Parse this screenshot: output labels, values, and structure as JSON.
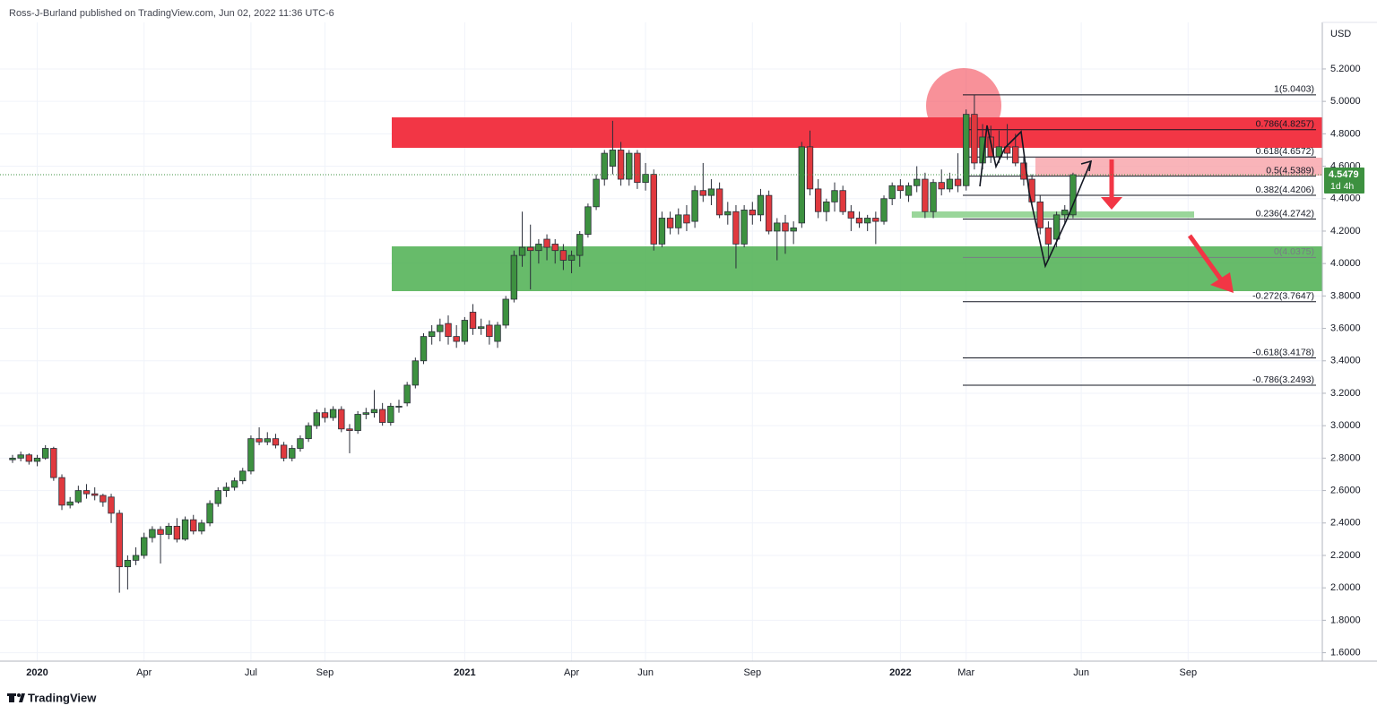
{
  "chart_data": {
    "type": "candlestick",
    "header": "Ross-J-Burland published on TradingView.com, Jun 02, 2022 11:36 UTC-6",
    "currency": "USD",
    "brand": "TradingView",
    "up_color": "#3d9140",
    "down_color": "#e0393e",
    "grid": true,
    "ylim": [
      1.548,
      5.487
    ],
    "yticks": [
      {
        "value": 1.6,
        "label": "1.6000"
      },
      {
        "value": 1.8,
        "label": "1.8000"
      },
      {
        "value": 2.0,
        "label": "2.0000"
      },
      {
        "value": 2.2,
        "label": "2.2000"
      },
      {
        "value": 2.4,
        "label": "2.4000"
      },
      {
        "value": 2.6,
        "label": "2.6000"
      },
      {
        "value": 2.8,
        "label": "2.8000"
      },
      {
        "value": 3.0,
        "label": "3.0000"
      },
      {
        "value": 3.2,
        "label": "3.2000"
      },
      {
        "value": 3.4,
        "label": "3.4000"
      },
      {
        "value": 3.6,
        "label": "3.6000"
      },
      {
        "value": 3.8,
        "label": "3.8000"
      },
      {
        "value": 4.0,
        "label": "4.0000"
      },
      {
        "value": 4.2,
        "label": "4.2000"
      },
      {
        "value": 4.4,
        "label": "4.4000"
      },
      {
        "value": 4.6,
        "label": "4.6000"
      },
      {
        "value": 4.8,
        "label": "4.8000"
      },
      {
        "value": 5.0,
        "label": "5.0000"
      },
      {
        "value": 5.2,
        "label": "5.2000"
      }
    ],
    "last_price": {
      "value": 4.5479,
      "label": "4.5479"
    },
    "countdown": "1d 4h",
    "fib_levels": [
      {
        "value": 5.0403,
        "label": "1(5.0403)"
      },
      {
        "value": 4.8257,
        "label": "0.786(4.8257)"
      },
      {
        "value": 4.6572,
        "label": "0.618(4.6572)"
      },
      {
        "value": 4.5389,
        "label": "0.5(4.5389)"
      },
      {
        "value": 4.4206,
        "label": "0.382(4.4206)"
      },
      {
        "value": 4.2742,
        "label": "0.236(4.2742)"
      },
      {
        "value": 4.0375,
        "label": "0(4.0375)"
      },
      {
        "value": 3.7647,
        "label": "-0.272(3.7647)"
      },
      {
        "value": 3.4178,
        "label": "-0.618(3.4178)"
      },
      {
        "value": 3.2493,
        "label": "-0.786(3.2493)"
      }
    ],
    "categories": [
      null,
      null,
      null,
      "2020",
      null,
      null,
      null,
      null,
      null,
      null,
      null,
      null,
      null,
      null,
      null,
      null,
      "Apr",
      null,
      null,
      null,
      null,
      null,
      null,
      null,
      null,
      null,
      null,
      null,
      null,
      "Jul",
      null,
      null,
      null,
      null,
      null,
      null,
      null,
      null,
      "Sep",
      null,
      null,
      null,
      null,
      null,
      null,
      null,
      null,
      null,
      null,
      null,
      null,
      null,
      null,
      null,
      null,
      "2021",
      null,
      null,
      null,
      null,
      null,
      null,
      null,
      null,
      null,
      null,
      null,
      null,
      "Apr",
      null,
      null,
      null,
      null,
      null,
      null,
      null,
      null,
      "Jun",
      null,
      null,
      null,
      null,
      null,
      null,
      null,
      null,
      null,
      null,
      null,
      null,
      "Sep",
      null,
      null,
      null,
      null,
      null,
      null,
      null,
      null,
      null,
      null,
      null,
      null,
      null,
      null,
      null,
      null,
      null,
      "2022",
      null,
      null,
      null,
      null,
      null,
      null,
      null,
      "Mar",
      null,
      null,
      null,
      null,
      null,
      null,
      null,
      null,
      null,
      null,
      null,
      null,
      null,
      "Jun",
      null,
      null,
      null,
      null,
      null,
      null,
      null,
      null,
      null,
      null,
      null,
      null,
      "Sep"
    ],
    "candles": [
      [
        2.79,
        2.82,
        2.77,
        2.8
      ],
      [
        2.8,
        2.84,
        2.78,
        2.82
      ],
      [
        2.82,
        2.83,
        2.76,
        2.78
      ],
      [
        2.78,
        2.82,
        2.75,
        2.8
      ],
      [
        2.8,
        2.88,
        2.79,
        2.86
      ],
      [
        2.86,
        2.87,
        2.66,
        2.68
      ],
      [
        2.68,
        2.7,
        2.48,
        2.51
      ],
      [
        2.51,
        2.56,
        2.49,
        2.53
      ],
      [
        2.53,
        2.63,
        2.52,
        2.6
      ],
      [
        2.6,
        2.64,
        2.55,
        2.58
      ],
      [
        2.58,
        2.62,
        2.54,
        2.57
      ],
      [
        2.57,
        2.58,
        2.5,
        2.53
      ],
      [
        2.56,
        2.58,
        2.4,
        2.46
      ],
      [
        2.46,
        2.48,
        1.97,
        2.13
      ],
      [
        2.13,
        2.2,
        1.99,
        2.17
      ],
      [
        2.17,
        2.25,
        2.14,
        2.2
      ],
      [
        2.2,
        2.34,
        2.18,
        2.31
      ],
      [
        2.31,
        2.38,
        2.28,
        2.36
      ],
      [
        2.36,
        2.38,
        2.15,
        2.33
      ],
      [
        2.33,
        2.4,
        2.3,
        2.38
      ],
      [
        2.38,
        2.43,
        2.28,
        2.3
      ],
      [
        2.3,
        2.44,
        2.29,
        2.42
      ],
      [
        2.42,
        2.45,
        2.33,
        2.35
      ],
      [
        2.35,
        2.42,
        2.33,
        2.4
      ],
      [
        2.4,
        2.54,
        2.38,
        2.52
      ],
      [
        2.52,
        2.62,
        2.5,
        2.6
      ],
      [
        2.6,
        2.65,
        2.56,
        2.62
      ],
      [
        2.62,
        2.68,
        2.6,
        2.66
      ],
      [
        2.66,
        2.74,
        2.64,
        2.72
      ],
      [
        2.72,
        2.94,
        2.7,
        2.92
      ],
      [
        2.92,
        2.99,
        2.88,
        2.9
      ],
      [
        2.9,
        2.96,
        2.88,
        2.92
      ],
      [
        2.92,
        2.95,
        2.86,
        2.88
      ],
      [
        2.88,
        2.9,
        2.78,
        2.8
      ],
      [
        2.8,
        2.88,
        2.78,
        2.86
      ],
      [
        2.86,
        2.94,
        2.84,
        2.92
      ],
      [
        2.92,
        3.02,
        2.9,
        3.0
      ],
      [
        3.0,
        3.1,
        2.98,
        3.08
      ],
      [
        3.08,
        3.11,
        3.02,
        3.05
      ],
      [
        3.05,
        3.12,
        3.03,
        3.1
      ],
      [
        3.1,
        3.12,
        2.96,
        2.98
      ],
      [
        2.98,
        3.01,
        2.83,
        2.97
      ],
      [
        2.97,
        3.09,
        2.95,
        3.07
      ],
      [
        3.07,
        3.11,
        3.04,
        3.08
      ],
      [
        3.08,
        3.22,
        3.05,
        3.1
      ],
      [
        3.1,
        3.14,
        3.0,
        3.02
      ],
      [
        3.02,
        3.14,
        3.0,
        3.12
      ],
      [
        3.12,
        3.16,
        3.08,
        3.12
      ],
      [
        3.14,
        3.27,
        3.12,
        3.25
      ],
      [
        3.25,
        3.42,
        3.23,
        3.4
      ],
      [
        3.4,
        3.57,
        3.38,
        3.55
      ],
      [
        3.55,
        3.62,
        3.5,
        3.58
      ],
      [
        3.58,
        3.66,
        3.52,
        3.62
      ],
      [
        3.63,
        3.68,
        3.5,
        3.55
      ],
      [
        3.55,
        3.62,
        3.48,
        3.52
      ],
      [
        3.52,
        3.67,
        3.5,
        3.65
      ],
      [
        3.7,
        3.75,
        3.56,
        3.6
      ],
      [
        3.6,
        3.66,
        3.56,
        3.61
      ],
      [
        3.62,
        3.65,
        3.5,
        3.55
      ],
      [
        3.52,
        3.64,
        3.48,
        3.62
      ],
      [
        3.62,
        3.8,
        3.6,
        3.78
      ],
      [
        3.78,
        4.08,
        3.76,
        4.05
      ],
      [
        4.05,
        4.32,
        3.98,
        4.1
      ],
      [
        4.1,
        4.24,
        3.84,
        4.08
      ],
      [
        4.08,
        4.15,
        4.0,
        4.12
      ],
      [
        4.15,
        4.18,
        4.02,
        4.1
      ],
      [
        4.12,
        4.15,
        4.0,
        4.08
      ],
      [
        4.08,
        4.12,
        3.96,
        4.02
      ],
      [
        4.02,
        4.08,
        3.94,
        4.05
      ],
      [
        4.05,
        4.2,
        3.98,
        4.18
      ],
      [
        4.18,
        4.37,
        4.16,
        4.35
      ],
      [
        4.35,
        4.55,
        4.33,
        4.52
      ],
      [
        4.52,
        4.7,
        4.48,
        4.68
      ],
      [
        4.6,
        4.88,
        4.55,
        4.7
      ],
      [
        4.7,
        4.75,
        4.48,
        4.52
      ],
      [
        4.52,
        4.7,
        4.48,
        4.68
      ],
      [
        4.68,
        4.7,
        4.46,
        4.5
      ],
      [
        4.5,
        4.62,
        4.45,
        4.55
      ],
      [
        4.55,
        4.58,
        4.08,
        4.12
      ],
      [
        4.12,
        4.32,
        4.1,
        4.28
      ],
      [
        4.28,
        4.32,
        4.18,
        4.22
      ],
      [
        4.22,
        4.34,
        4.18,
        4.3
      ],
      [
        4.3,
        4.36,
        4.2,
        4.25
      ],
      [
        4.26,
        4.48,
        4.22,
        4.45
      ],
      [
        4.45,
        4.62,
        4.38,
        4.42
      ],
      [
        4.42,
        4.52,
        4.36,
        4.46
      ],
      [
        4.46,
        4.5,
        4.28,
        4.3
      ],
      [
        4.3,
        4.38,
        4.24,
        4.32
      ],
      [
        4.32,
        4.36,
        3.97,
        4.12
      ],
      [
        4.12,
        4.36,
        4.1,
        4.33
      ],
      [
        4.33,
        4.38,
        4.24,
        4.3
      ],
      [
        4.3,
        4.46,
        4.26,
        4.42
      ],
      [
        4.42,
        4.45,
        4.18,
        4.2
      ],
      [
        4.2,
        4.28,
        4.02,
        4.25
      ],
      [
        4.25,
        4.3,
        4.06,
        4.2
      ],
      [
        4.2,
        4.26,
        4.12,
        4.22
      ],
      [
        4.25,
        4.75,
        4.22,
        4.72
      ],
      [
        4.72,
        4.82,
        4.42,
        4.46
      ],
      [
        4.46,
        4.52,
        4.28,
        4.32
      ],
      [
        4.32,
        4.4,
        4.26,
        4.38
      ],
      [
        4.38,
        4.5,
        4.32,
        4.45
      ],
      [
        4.45,
        4.48,
        4.3,
        4.32
      ],
      [
        4.32,
        4.36,
        4.2,
        4.28
      ],
      [
        4.28,
        4.32,
        4.22,
        4.25
      ],
      [
        4.25,
        4.3,
        4.2,
        4.28
      ],
      [
        4.28,
        4.32,
        4.12,
        4.26
      ],
      [
        4.26,
        4.42,
        4.24,
        4.4
      ],
      [
        4.4,
        4.5,
        4.36,
        4.48
      ],
      [
        4.48,
        4.52,
        4.4,
        4.45
      ],
      [
        4.42,
        4.5,
        4.38,
        4.48
      ],
      [
        4.48,
        4.6,
        4.44,
        4.52
      ],
      [
        4.52,
        4.56,
        4.28,
        4.32
      ],
      [
        4.32,
        4.52,
        4.28,
        4.5
      ],
      [
        4.5,
        4.58,
        4.42,
        4.46
      ],
      [
        4.46,
        4.56,
        4.44,
        4.52
      ],
      [
        4.52,
        4.68,
        4.44,
        4.48
      ],
      [
        4.48,
        4.95,
        4.45,
        4.92
      ],
      [
        4.92,
        5.04,
        4.58,
        4.62
      ],
      [
        4.62,
        4.86,
        4.58,
        4.78
      ],
      [
        4.78,
        4.85,
        4.62,
        4.66
      ],
      [
        4.66,
        4.82,
        4.62,
        4.72
      ],
      [
        4.72,
        4.86,
        4.64,
        4.68
      ],
      [
        4.72,
        4.8,
        4.6,
        4.62
      ],
      [
        4.62,
        4.66,
        4.48,
        4.52
      ],
      [
        4.52,
        4.55,
        4.36,
        4.38
      ],
      [
        4.38,
        4.42,
        4.18,
        4.22
      ],
      [
        4.22,
        4.26,
        4.02,
        4.12
      ],
      [
        4.15,
        4.32,
        4.1,
        4.3
      ],
      [
        4.3,
        4.36,
        4.24,
        4.33
      ],
      [
        4.3,
        4.56,
        4.28,
        4.5479
      ],
      null,
      null,
      null,
      null,
      null,
      null,
      null,
      null,
      null,
      null,
      null,
      null,
      null,
      null
    ]
  }
}
